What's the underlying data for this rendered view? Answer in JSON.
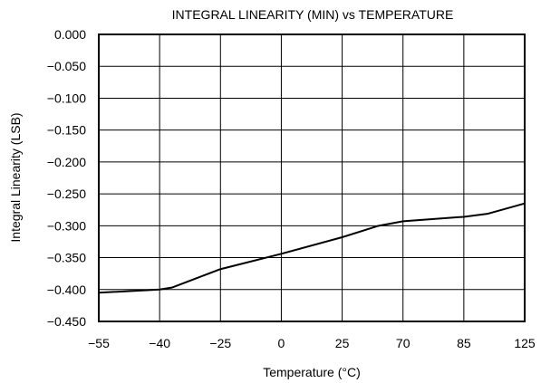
{
  "chart_data": {
    "type": "line",
    "title": "INTEGRAL LINEARITY (MIN) vs TEMPERATURE",
    "xlabel": "Temperature (°C)",
    "ylabel": "Integral Linearity (LSB)",
    "x_tick_labels": [
      "−55",
      "−40",
      "−25",
      "0",
      "25",
      "70",
      "85",
      "125"
    ],
    "y_tick_labels": [
      "0.000",
      "−0.050",
      "−0.100",
      "−0.150",
      "−0.200",
      "−0.250",
      "−0.300",
      "−0.350",
      "−0.400",
      "−0.450"
    ],
    "ylim": [
      -0.45,
      0.0
    ],
    "grid": true,
    "series": [
      {
        "x": [
          "−55",
          "−40",
          "−25",
          "0",
          "25",
          "70",
          "85",
          "125"
        ],
        "points": [
          {
            "x_index": 0.0,
            "y": -0.405
          },
          {
            "x_index": 1.0,
            "y": -0.4
          },
          {
            "x_index": 1.2,
            "y": -0.397
          },
          {
            "x_index": 2.0,
            "y": -0.368
          },
          {
            "x_index": 3.0,
            "y": -0.344
          },
          {
            "x_index": 4.0,
            "y": -0.318
          },
          {
            "x_index": 4.6,
            "y": -0.3
          },
          {
            "x_index": 5.0,
            "y": -0.293
          },
          {
            "x_index": 6.0,
            "y": -0.286
          },
          {
            "x_index": 6.4,
            "y": -0.281
          },
          {
            "x_index": 7.0,
            "y": -0.265
          }
        ],
        "color": "#000000"
      }
    ]
  }
}
